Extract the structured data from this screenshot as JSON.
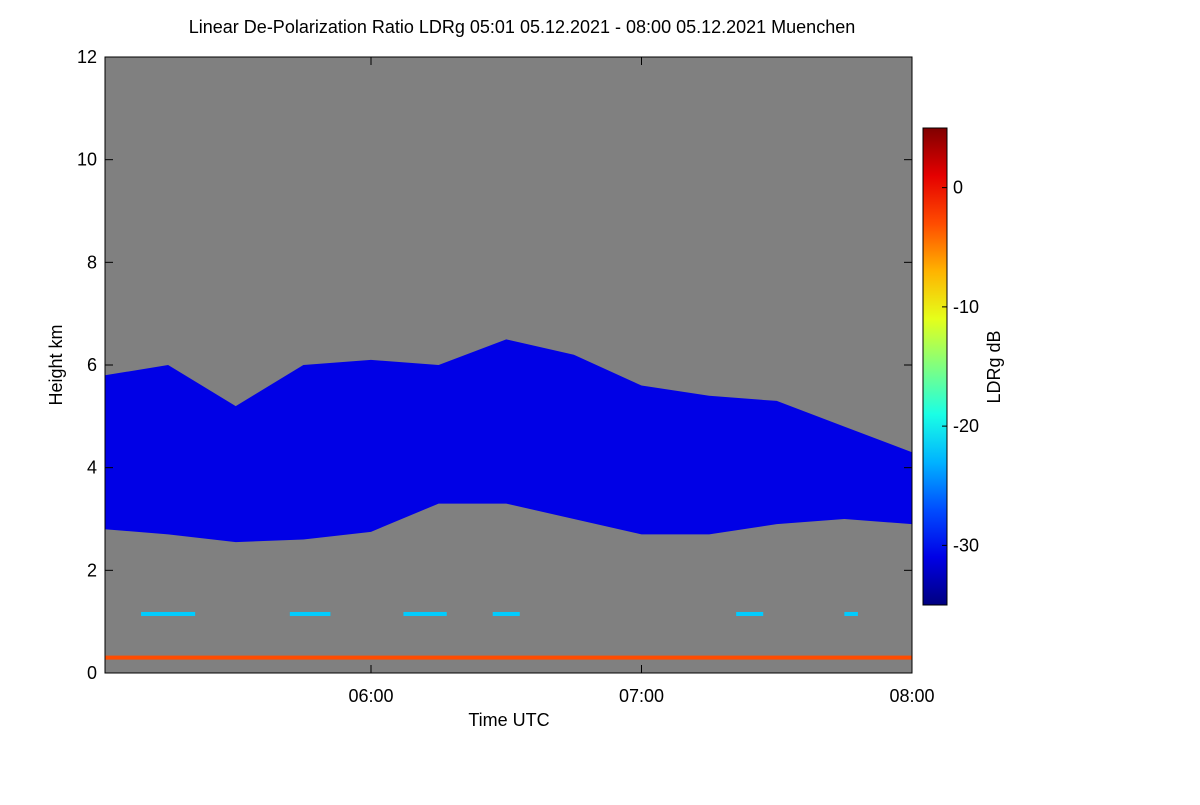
{
  "chart_data": {
    "type": "heatmap",
    "title": "Linear De-Polarization Ratio LDRg   05:01 05.12.2021 - 08:00 05.12.2021 Muenchen",
    "x_label": "Time UTC",
    "y_label": "Height km",
    "colorbar_label": "LDRg dB",
    "xlim": [
      5.0167,
      8.0
    ],
    "xticks": [
      {
        "value": 6,
        "label": "06:00"
      },
      {
        "value": 7,
        "label": "07:00"
      },
      {
        "value": 8,
        "label": "08:00"
      }
    ],
    "ylim": [
      0,
      12
    ],
    "yticks": [
      0,
      2,
      4,
      6,
      8,
      10,
      12
    ],
    "zlim": [
      -35,
      5
    ],
    "zticks": [
      -30,
      -20,
      -10,
      0
    ],
    "colormap": "jet",
    "background": "#808080",
    "cloud": {
      "x": [
        5.0167,
        5.25,
        5.5,
        5.75,
        6.0,
        6.25,
        6.5,
        6.75,
        7.0,
        7.25,
        7.5,
        7.75,
        8.0
      ],
      "base": [
        2.8,
        2.7,
        2.55,
        2.6,
        2.75,
        3.3,
        3.3,
        3.0,
        2.7,
        2.7,
        2.9,
        3.0,
        2.9
      ],
      "top": [
        5.8,
        6.0,
        5.2,
        6.0,
        6.1,
        6.0,
        6.5,
        6.2,
        5.6,
        5.4,
        5.3,
        4.8,
        4.3
      ],
      "value": -31
    },
    "surface_layer": {
      "height": 0.3,
      "value": -3
    },
    "aerosol_layer": {
      "height": 1.15,
      "value": -22,
      "starts": [
        5.15,
        5.7,
        6.12,
        6.45,
        7.35,
        7.75
      ],
      "ends": [
        5.35,
        5.85,
        6.28,
        6.55,
        7.45,
        7.8
      ]
    }
  }
}
